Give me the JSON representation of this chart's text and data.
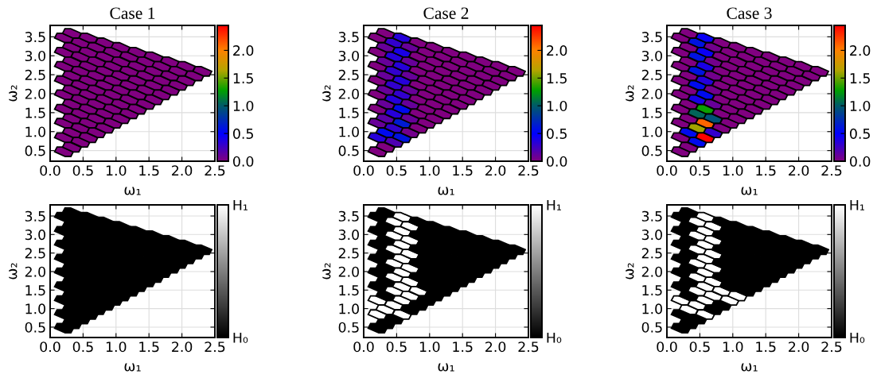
{
  "chart_data": [
    {
      "type": "scatter",
      "title": "Case 1",
      "xlabel": "ω₁",
      "ylabel": "ω₂",
      "grid": true,
      "xlim": [
        0,
        2.5
      ],
      "ylim": [
        0.22,
        3.8
      ],
      "xticks": [
        {
          "value": 0,
          "label": "0.0"
        },
        0.5,
        {
          "value": 1,
          "label": "1.0"
        },
        1.5,
        {
          "value": 2,
          "label": "2.0"
        },
        2.5
      ],
      "yticks": [
        0.5,
        {
          "value": 1,
          "label": "1.0"
        },
        1.5,
        {
          "value": 2,
          "label": "2.0"
        },
        2.5,
        {
          "value": 3,
          "label": "3.0"
        },
        3.5
      ],
      "clim": [
        0,
        2.45
      ],
      "cticks": [
        {
          "value": 0,
          "label": "0.0"
        },
        {
          "value": 0.5,
          "label": "0.5"
        },
        {
          "value": 1,
          "label": "1.0"
        },
        {
          "value": 1.5,
          "label": "1.5"
        },
        {
          "value": 2,
          "label": "2.0"
        }
      ],
      "x": [
        0.21,
        0.21,
        0.21,
        0.21,
        0.21,
        0.21,
        0.21,
        0.21,
        0.21,
        0.33,
        0.33,
        0.33,
        0.33,
        0.33,
        0.33,
        0.33,
        0.33,
        0.33,
        0.46,
        0.46,
        0.46,
        0.46,
        0.46,
        0.46,
        0.46,
        0.46,
        0.58,
        0.58,
        0.58,
        0.58,
        0.58,
        0.58,
        0.58,
        0.58,
        0.7,
        0.7,
        0.7,
        0.7,
        0.7,
        0.7,
        0.7,
        0.83,
        0.83,
        0.83,
        0.83,
        0.83,
        0.83,
        0.83,
        0.95,
        0.95,
        0.95,
        0.95,
        0.95,
        0.95,
        1.07,
        1.07,
        1.07,
        1.07,
        1.07,
        1.07,
        1.2,
        1.2,
        1.2,
        1.2,
        1.2,
        1.32,
        1.32,
        1.32,
        1.32,
        1.32,
        1.45,
        1.45,
        1.45,
        1.45,
        1.57,
        1.57,
        1.57,
        1.57,
        1.69,
        1.69,
        1.69,
        1.82,
        1.82,
        1.82,
        1.94,
        1.94,
        2.06,
        2.06,
        2.19,
        2.31
      ],
      "values": [
        0.47,
        0.84,
        1.22,
        1.59,
        1.97,
        2.34,
        2.72,
        3.09,
        3.47,
        0.59,
        0.97,
        1.34,
        1.72,
        2.09,
        2.47,
        2.84,
        3.22,
        3.59,
        0.72,
        1.09,
        1.47,
        1.84,
        2.22,
        2.59,
        2.97,
        3.34,
        0.84,
        1.22,
        1.59,
        1.97,
        2.34,
        2.72,
        3.09,
        3.47,
        0.97,
        1.34,
        1.72,
        2.09,
        2.47,
        2.84,
        3.22,
        1.09,
        1.47,
        1.84,
        2.22,
        2.59,
        2.97,
        3.34,
        1.22,
        1.59,
        1.97,
        2.34,
        2.72,
        3.09,
        1.34,
        1.72,
        2.09,
        2.47,
        2.84,
        3.22,
        1.47,
        1.84,
        2.22,
        2.59,
        2.97,
        1.59,
        1.97,
        2.34,
        2.72,
        3.09,
        1.72,
        2.09,
        2.47,
        2.84,
        1.84,
        2.22,
        2.59,
        2.97,
        1.97,
        2.34,
        2.72,
        2.09,
        2.47,
        2.84,
        2.22,
        2.59,
        2.34,
        2.72,
        2.47,
        2.59
      ],
      "cvalues": [
        0,
        0,
        0,
        0,
        0,
        0,
        0,
        0,
        0,
        0,
        0,
        0,
        0,
        0,
        0,
        0,
        0,
        0,
        0,
        0,
        0,
        0,
        0,
        0,
        0,
        0,
        0,
        0,
        0,
        0,
        0,
        0,
        0,
        0,
        0,
        0,
        0,
        0,
        0,
        0,
        0,
        0,
        0,
        0,
        0,
        0,
        0,
        0,
        0,
        0,
        0,
        0,
        0,
        0,
        0,
        0,
        0,
        0,
        0,
        0,
        0,
        0,
        0,
        0,
        0,
        0,
        0,
        0,
        0,
        0,
        0,
        0,
        0,
        0,
        0,
        0,
        0,
        0,
        0,
        0,
        0,
        0,
        0,
        0,
        0,
        0,
        0,
        0,
        0,
        0
      ]
    },
    {
      "type": "scatter",
      "title": "Case 2",
      "xlabel": "ω₁",
      "ylabel": "ω₂",
      "grid": true,
      "xlim": [
        0,
        2.5
      ],
      "ylim": [
        0.22,
        3.8
      ],
      "xticks": [
        {
          "value": 0,
          "label": "0.0"
        },
        0.5,
        {
          "value": 1,
          "label": "1.0"
        },
        1.5,
        {
          "value": 2,
          "label": "2.0"
        },
        2.5
      ],
      "yticks": [
        0.5,
        {
          "value": 1,
          "label": "1.0"
        },
        1.5,
        {
          "value": 2,
          "label": "2.0"
        },
        2.5,
        {
          "value": 3,
          "label": "3.0"
        },
        3.5
      ],
      "clim": [
        0,
        2.45
      ],
      "cticks": [
        {
          "value": 0,
          "label": "0.0"
        },
        {
          "value": 0.5,
          "label": "0.5"
        },
        {
          "value": 1,
          "label": "1.0"
        },
        {
          "value": 1.5,
          "label": "1.5"
        },
        {
          "value": 2,
          "label": "2.0"
        }
      ],
      "x": [
        0.21,
        0.21,
        0.21,
        0.21,
        0.21,
        0.21,
        0.21,
        0.21,
        0.21,
        0.33,
        0.33,
        0.33,
        0.33,
        0.33,
        0.33,
        0.33,
        0.33,
        0.33,
        0.46,
        0.46,
        0.46,
        0.46,
        0.46,
        0.46,
        0.46,
        0.46,
        0.58,
        0.58,
        0.58,
        0.58,
        0.58,
        0.58,
        0.58,
        0.58,
        0.7,
        0.7,
        0.7,
        0.7,
        0.7,
        0.7,
        0.7,
        0.83,
        0.83,
        0.83,
        0.83,
        0.83,
        0.83,
        0.83,
        0.95,
        0.95,
        0.95,
        0.95,
        0.95,
        0.95,
        1.07,
        1.07,
        1.07,
        1.07,
        1.07,
        1.07,
        1.2,
        1.2,
        1.2,
        1.2,
        1.2,
        1.32,
        1.32,
        1.32,
        1.32,
        1.32,
        1.45,
        1.45,
        1.45,
        1.45,
        1.57,
        1.57,
        1.57,
        1.57,
        1.69,
        1.69,
        1.69,
        1.82,
        1.82,
        1.82,
        1.94,
        1.94,
        2.06,
        2.06,
        2.19,
        2.31
      ],
      "values": [
        0.47,
        0.84,
        1.22,
        1.59,
        1.97,
        2.34,
        2.72,
        3.09,
        3.47,
        0.59,
        0.97,
        1.34,
        1.72,
        2.09,
        2.47,
        2.84,
        3.22,
        3.59,
        0.72,
        1.09,
        1.47,
        1.84,
        2.22,
        2.59,
        2.97,
        3.34,
        0.84,
        1.22,
        1.59,
        1.97,
        2.34,
        2.72,
        3.09,
        3.47,
        0.97,
        1.34,
        1.72,
        2.09,
        2.47,
        2.84,
        3.22,
        1.09,
        1.47,
        1.84,
        2.22,
        2.59,
        2.97,
        3.34,
        1.22,
        1.59,
        1.97,
        2.34,
        2.72,
        3.09,
        1.34,
        1.72,
        2.09,
        2.47,
        2.84,
        3.22,
        1.47,
        1.84,
        2.22,
        2.59,
        2.97,
        1.59,
        1.97,
        2.34,
        2.72,
        3.09,
        1.72,
        2.09,
        2.47,
        2.84,
        1.84,
        2.22,
        2.59,
        2.97,
        1.97,
        2.34,
        2.72,
        2.09,
        2.47,
        2.84,
        2.22,
        2.59,
        2.34,
        2.72,
        2.47,
        2.59
      ],
      "cvalues": [
        0,
        0.35,
        0.1,
        0,
        0,
        0,
        0,
        0,
        0,
        0,
        0.55,
        0.15,
        0.1,
        0.1,
        0.1,
        0.1,
        0.1,
        0,
        0.2,
        0.3,
        0.35,
        0.35,
        0.3,
        0.3,
        0.35,
        0.3,
        0.6,
        0.65,
        0.55,
        0.3,
        0.35,
        0.35,
        0.4,
        0.35,
        0.05,
        0.1,
        0.1,
        0.1,
        0.1,
        0.1,
        0.1,
        0,
        0,
        0,
        0,
        0,
        0,
        0,
        0,
        0,
        0,
        0,
        0,
        0,
        0,
        0,
        0,
        0,
        0,
        0,
        0,
        0,
        0,
        0,
        0,
        0,
        0,
        0,
        0,
        0,
        0,
        0,
        0,
        0,
        0,
        0,
        0,
        0,
        0,
        0,
        0,
        0,
        0,
        0,
        0,
        0,
        0,
        0,
        0,
        0
      ]
    },
    {
      "type": "scatter",
      "title": "Case 3",
      "xlabel": "ω₁",
      "ylabel": "ω₂",
      "grid": true,
      "xlim": [
        0,
        2.5
      ],
      "ylim": [
        0.22,
        3.8
      ],
      "xticks": [
        {
          "value": 0,
          "label": "0.0"
        },
        0.5,
        {
          "value": 1,
          "label": "1.0"
        },
        1.5,
        {
          "value": 2,
          "label": "2.0"
        },
        2.5
      ],
      "yticks": [
        0.5,
        {
          "value": 1,
          "label": "1.0"
        },
        1.5,
        {
          "value": 2,
          "label": "2.0"
        },
        2.5,
        {
          "value": 3,
          "label": "3.0"
        },
        3.5
      ],
      "clim": [
        0,
        2.45
      ],
      "cticks": [
        {
          "value": 0,
          "label": "0.0"
        },
        {
          "value": 0.5,
          "label": "0.5"
        },
        {
          "value": 1,
          "label": "1.0"
        },
        {
          "value": 1.5,
          "label": "1.5"
        },
        {
          "value": 2,
          "label": "2.0"
        }
      ],
      "x": [
        0.21,
        0.21,
        0.21,
        0.21,
        0.21,
        0.21,
        0.21,
        0.21,
        0.21,
        0.33,
        0.33,
        0.33,
        0.33,
        0.33,
        0.33,
        0.33,
        0.33,
        0.33,
        0.46,
        0.46,
        0.46,
        0.46,
        0.46,
        0.46,
        0.46,
        0.46,
        0.58,
        0.58,
        0.58,
        0.58,
        0.58,
        0.58,
        0.58,
        0.58,
        0.7,
        0.7,
        0.7,
        0.7,
        0.7,
        0.7,
        0.7,
        0.83,
        0.83,
        0.83,
        0.83,
        0.83,
        0.83,
        0.83,
        0.95,
        0.95,
        0.95,
        0.95,
        0.95,
        0.95,
        1.07,
        1.07,
        1.07,
        1.07,
        1.07,
        1.07,
        1.2,
        1.2,
        1.2,
        1.2,
        1.2,
        1.32,
        1.32,
        1.32,
        1.32,
        1.32,
        1.45,
        1.45,
        1.45,
        1.45,
        1.57,
        1.57,
        1.57,
        1.57,
        1.69,
        1.69,
        1.69,
        1.82,
        1.82,
        1.82,
        1.94,
        1.94,
        2.06,
        2.06,
        2.19,
        2.31
      ],
      "values": [
        0.47,
        0.84,
        1.22,
        1.59,
        1.97,
        2.34,
        2.72,
        3.09,
        3.47,
        0.59,
        0.97,
        1.34,
        1.72,
        2.09,
        2.47,
        2.84,
        3.22,
        3.59,
        0.72,
        1.09,
        1.47,
        1.84,
        2.22,
        2.59,
        2.97,
        3.34,
        0.84,
        1.22,
        1.59,
        1.97,
        2.34,
        2.72,
        3.09,
        3.47,
        0.97,
        1.34,
        1.72,
        2.09,
        2.47,
        2.84,
        3.22,
        1.09,
        1.47,
        1.84,
        2.22,
        2.59,
        2.97,
        3.34,
        1.22,
        1.59,
        1.97,
        2.34,
        2.72,
        3.09,
        1.34,
        1.72,
        2.09,
        2.47,
        2.84,
        3.22,
        1.47,
        1.84,
        2.22,
        2.59,
        2.97,
        1.59,
        1.97,
        2.34,
        2.72,
        3.09,
        1.72,
        2.09,
        2.47,
        2.84,
        1.84,
        2.22,
        2.59,
        2.97,
        1.97,
        2.34,
        2.72,
        2.09,
        2.47,
        2.84,
        2.22,
        2.59,
        2.34,
        2.72,
        2.47,
        2.59
      ],
      "cvalues": [
        0,
        0,
        0,
        0,
        0,
        0,
        0,
        0,
        0,
        0,
        0.55,
        0,
        0,
        0,
        0,
        0,
        0,
        0,
        0.55,
        1.6,
        1.05,
        0.4,
        0.55,
        0.6,
        0.6,
        0.6,
        2.45,
        2.1,
        1.3,
        0.55,
        0.35,
        0.4,
        0.45,
        0.45,
        0.3,
        0.95,
        0.1,
        0.05,
        0.05,
        0.05,
        0.05,
        0,
        0,
        0,
        0,
        0,
        0,
        0,
        0,
        0,
        0,
        0,
        0,
        0,
        0,
        0,
        0,
        0,
        0,
        0,
        0,
        0,
        0,
        0,
        0,
        0,
        0,
        0,
        0,
        0,
        0,
        0,
        0,
        0,
        0,
        0,
        0,
        0,
        0,
        0,
        0,
        0,
        0,
        0,
        0,
        0,
        0,
        0,
        0,
        0
      ]
    },
    {
      "type": "scatter",
      "xlabel": "ω₁",
      "ylabel": "ω₂",
      "grid": true,
      "xlim": [
        0,
        2.5
      ],
      "ylim": [
        0.22,
        3.8
      ],
      "xticks": [
        {
          "value": 0,
          "label": "0.0"
        },
        0.5,
        {
          "value": 1,
          "label": "1.0"
        },
        1.5,
        {
          "value": 2,
          "label": "2.0"
        },
        2.5
      ],
      "yticks": [
        0.5,
        {
          "value": 1,
          "label": "1.0"
        },
        1.5,
        {
          "value": 2,
          "label": "2.0"
        },
        2.5,
        {
          "value": 3,
          "label": "3.0"
        },
        3.5
      ],
      "clim": [
        0,
        1
      ],
      "cticks": [
        {
          "value": 0,
          "label": "H₀"
        },
        {
          "value": 1,
          "label": "H₁"
        }
      ],
      "x": [
        0.21,
        0.21,
        0.21,
        0.21,
        0.21,
        0.21,
        0.21,
        0.21,
        0.21,
        0.33,
        0.33,
        0.33,
        0.33,
        0.33,
        0.33,
        0.33,
        0.33,
        0.33,
        0.46,
        0.46,
        0.46,
        0.46,
        0.46,
        0.46,
        0.46,
        0.46,
        0.58,
        0.58,
        0.58,
        0.58,
        0.58,
        0.58,
        0.58,
        0.58,
        0.7,
        0.7,
        0.7,
        0.7,
        0.7,
        0.7,
        0.7,
        0.83,
        0.83,
        0.83,
        0.83,
        0.83,
        0.83,
        0.83,
        0.95,
        0.95,
        0.95,
        0.95,
        0.95,
        0.95,
        1.07,
        1.07,
        1.07,
        1.07,
        1.07,
        1.07,
        1.2,
        1.2,
        1.2,
        1.2,
        1.2,
        1.32,
        1.32,
        1.32,
        1.32,
        1.32,
        1.45,
        1.45,
        1.45,
        1.45,
        1.57,
        1.57,
        1.57,
        1.57,
        1.69,
        1.69,
        1.69,
        1.82,
        1.82,
        1.82,
        1.94,
        1.94,
        2.06,
        2.06,
        2.19,
        2.31
      ],
      "values": [
        0.47,
        0.84,
        1.22,
        1.59,
        1.97,
        2.34,
        2.72,
        3.09,
        3.47,
        0.59,
        0.97,
        1.34,
        1.72,
        2.09,
        2.47,
        2.84,
        3.22,
        3.59,
        0.72,
        1.09,
        1.47,
        1.84,
        2.22,
        2.59,
        2.97,
        3.34,
        0.84,
        1.22,
        1.59,
        1.97,
        2.34,
        2.72,
        3.09,
        3.47,
        0.97,
        1.34,
        1.72,
        2.09,
        2.47,
        2.84,
        3.22,
        1.09,
        1.47,
        1.84,
        2.22,
        2.59,
        2.97,
        3.34,
        1.22,
        1.59,
        1.97,
        2.34,
        2.72,
        3.09,
        1.34,
        1.72,
        2.09,
        2.47,
        2.84,
        3.22,
        1.47,
        1.84,
        2.22,
        2.59,
        2.97,
        1.59,
        1.97,
        2.34,
        2.72,
        3.09,
        1.72,
        2.09,
        2.47,
        2.84,
        1.84,
        2.22,
        2.59,
        2.97,
        1.97,
        2.34,
        2.72,
        2.09,
        2.47,
        2.84,
        2.22,
        2.59,
        2.34,
        2.72,
        2.47,
        2.59
      ],
      "cvalues": [
        0,
        0,
        0,
        0,
        0,
        0,
        0,
        0,
        0,
        0,
        0,
        0,
        0,
        0,
        0,
        0,
        0,
        0,
        0,
        0,
        0,
        0,
        0,
        0,
        0,
        0,
        0,
        0,
        0,
        0,
        0,
        0,
        0,
        0,
        0,
        0,
        0,
        0,
        0,
        0,
        0,
        0,
        0,
        0,
        0,
        0,
        0,
        0,
        0,
        0,
        0,
        0,
        0,
        0,
        0,
        0,
        0,
        0,
        0,
        0,
        0,
        0,
        0,
        0,
        0,
        0,
        0,
        0,
        0,
        0,
        0,
        0,
        0,
        0,
        0,
        0,
        0,
        0,
        0,
        0,
        0,
        0,
        0,
        0,
        0,
        0,
        0,
        0,
        0,
        0
      ]
    },
    {
      "type": "scatter",
      "xlabel": "ω₁",
      "ylabel": "ω₂",
      "grid": true,
      "xlim": [
        0,
        2.5
      ],
      "ylim": [
        0.22,
        3.8
      ],
      "xticks": [
        {
          "value": 0,
          "label": "0.0"
        },
        0.5,
        {
          "value": 1,
          "label": "1.0"
        },
        1.5,
        {
          "value": 2,
          "label": "2.0"
        },
        2.5
      ],
      "yticks": [
        0.5,
        {
          "value": 1,
          "label": "1.0"
        },
        1.5,
        {
          "value": 2,
          "label": "2.0"
        },
        2.5,
        {
          "value": 3,
          "label": "3.0"
        },
        3.5
      ],
      "clim": [
        0,
        1
      ],
      "cticks": [
        {
          "value": 0,
          "label": "H₀"
        },
        {
          "value": 1,
          "label": "H₁"
        }
      ],
      "x": [
        0.21,
        0.21,
        0.21,
        0.21,
        0.21,
        0.21,
        0.21,
        0.21,
        0.21,
        0.33,
        0.33,
        0.33,
        0.33,
        0.33,
        0.33,
        0.33,
        0.33,
        0.33,
        0.46,
        0.46,
        0.46,
        0.46,
        0.46,
        0.46,
        0.46,
        0.46,
        0.58,
        0.58,
        0.58,
        0.58,
        0.58,
        0.58,
        0.58,
        0.58,
        0.7,
        0.7,
        0.7,
        0.7,
        0.7,
        0.7,
        0.7,
        0.83,
        0.83,
        0.83,
        0.83,
        0.83,
        0.83,
        0.83,
        0.95,
        0.95,
        0.95,
        0.95,
        0.95,
        0.95,
        1.07,
        1.07,
        1.07,
        1.07,
        1.07,
        1.07,
        1.2,
        1.2,
        1.2,
        1.2,
        1.2,
        1.32,
        1.32,
        1.32,
        1.32,
        1.32,
        1.45,
        1.45,
        1.45,
        1.45,
        1.57,
        1.57,
        1.57,
        1.57,
        1.69,
        1.69,
        1.69,
        1.82,
        1.82,
        1.82,
        1.94,
        1.94,
        2.06,
        2.06,
        2.19,
        2.31
      ],
      "values": [
        0.47,
        0.84,
        1.22,
        1.59,
        1.97,
        2.34,
        2.72,
        3.09,
        3.47,
        0.59,
        0.97,
        1.34,
        1.72,
        2.09,
        2.47,
        2.84,
        3.22,
        3.59,
        0.72,
        1.09,
        1.47,
        1.84,
        2.22,
        2.59,
        2.97,
        3.34,
        0.84,
        1.22,
        1.59,
        1.97,
        2.34,
        2.72,
        3.09,
        3.47,
        0.97,
        1.34,
        1.72,
        2.09,
        2.47,
        2.84,
        3.22,
        1.09,
        1.47,
        1.84,
        2.22,
        2.59,
        2.97,
        3.34,
        1.22,
        1.59,
        1.97,
        2.34,
        2.72,
        3.09,
        1.34,
        1.72,
        2.09,
        2.47,
        2.84,
        3.22,
        1.47,
        1.84,
        2.22,
        2.59,
        2.97,
        1.59,
        1.97,
        2.34,
        2.72,
        3.09,
        1.72,
        2.09,
        2.47,
        2.84,
        1.84,
        2.22,
        2.59,
        2.97,
        1.97,
        2.34,
        2.72,
        2.09,
        2.47,
        2.84,
        2.22,
        2.59,
        2.34,
        2.72,
        2.47,
        2.59
      ],
      "cvalues": [
        0,
        1,
        1,
        0,
        0,
        0,
        0,
        0,
        0,
        0,
        1,
        0,
        0,
        0,
        0,
        0,
        0,
        0,
        0,
        1,
        1,
        1,
        1,
        1,
        1,
        1,
        1,
        1,
        1,
        1,
        1,
        1,
        1,
        1,
        0,
        1,
        1,
        1,
        1,
        1,
        1,
        0,
        1,
        0,
        0,
        0,
        0,
        0,
        0,
        0,
        0,
        0,
        0,
        0,
        0,
        0,
        0,
        0,
        0,
        0,
        0,
        0,
        0,
        0,
        0,
        0,
        0,
        0,
        0,
        0,
        0,
        0,
        0,
        0,
        0,
        0,
        0,
        0,
        0,
        0,
        0,
        0,
        0,
        0,
        0,
        0,
        0,
        0,
        0,
        0
      ]
    },
    {
      "type": "scatter",
      "xlabel": "ω₁",
      "ylabel": "ω₂",
      "grid": true,
      "xlim": [
        0,
        2.5
      ],
      "ylim": [
        0.22,
        3.8
      ],
      "xticks": [
        {
          "value": 0,
          "label": "0.0"
        },
        0.5,
        {
          "value": 1,
          "label": "1.0"
        },
        1.5,
        {
          "value": 2,
          "label": "2.0"
        },
        2.5
      ],
      "yticks": [
        0.5,
        {
          "value": 1,
          "label": "1.0"
        },
        1.5,
        {
          "value": 2,
          "label": "2.0"
        },
        2.5,
        {
          "value": 3,
          "label": "3.0"
        },
        3.5
      ],
      "clim": [
        0,
        1
      ],
      "cticks": [
        {
          "value": 0,
          "label": "H₀"
        },
        {
          "value": 1,
          "label": "H₁"
        }
      ],
      "x": [
        0.21,
        0.21,
        0.21,
        0.21,
        0.21,
        0.21,
        0.21,
        0.21,
        0.21,
        0.33,
        0.33,
        0.33,
        0.33,
        0.33,
        0.33,
        0.33,
        0.33,
        0.33,
        0.46,
        0.46,
        0.46,
        0.46,
        0.46,
        0.46,
        0.46,
        0.46,
        0.58,
        0.58,
        0.58,
        0.58,
        0.58,
        0.58,
        0.58,
        0.58,
        0.7,
        0.7,
        0.7,
        0.7,
        0.7,
        0.7,
        0.7,
        0.83,
        0.83,
        0.83,
        0.83,
        0.83,
        0.83,
        0.83,
        0.95,
        0.95,
        0.95,
        0.95,
        0.95,
        0.95,
        1.07,
        1.07,
        1.07,
        1.07,
        1.07,
        1.07,
        1.2,
        1.2,
        1.2,
        1.2,
        1.2,
        1.32,
        1.32,
        1.32,
        1.32,
        1.32,
        1.45,
        1.45,
        1.45,
        1.45,
        1.57,
        1.57,
        1.57,
        1.57,
        1.69,
        1.69,
        1.69,
        1.82,
        1.82,
        1.82,
        1.94,
        1.94,
        2.06,
        2.06,
        2.19,
        2.31
      ],
      "values": [
        0.47,
        0.84,
        1.22,
        1.59,
        1.97,
        2.34,
        2.72,
        3.09,
        3.47,
        0.59,
        0.97,
        1.34,
        1.72,
        2.09,
        2.47,
        2.84,
        3.22,
        3.59,
        0.72,
        1.09,
        1.47,
        1.84,
        2.22,
        2.59,
        2.97,
        3.34,
        0.84,
        1.22,
        1.59,
        1.97,
        2.34,
        2.72,
        3.09,
        3.47,
        0.97,
        1.34,
        1.72,
        2.09,
        2.47,
        2.84,
        3.22,
        1.09,
        1.47,
        1.84,
        2.22,
        2.59,
        2.97,
        3.34,
        1.22,
        1.59,
        1.97,
        2.34,
        2.72,
        3.09,
        1.34,
        1.72,
        2.09,
        2.47,
        2.84,
        3.22,
        1.47,
        1.84,
        2.22,
        2.59,
        2.97,
        1.59,
        1.97,
        2.34,
        2.72,
        3.09,
        1.72,
        2.09,
        2.47,
        2.84,
        1.84,
        2.22,
        2.59,
        2.97,
        1.97,
        2.34,
        2.72,
        2.09,
        2.47,
        2.84,
        2.22,
        2.59,
        2.34,
        2.72,
        2.47,
        2.59
      ],
      "cvalues": [
        0,
        0,
        1,
        0,
        0,
        0,
        0,
        0,
        0,
        0,
        1,
        0,
        0,
        0,
        0,
        0,
        0,
        0,
        0,
        1,
        1,
        1,
        1,
        1,
        1,
        1,
        1,
        1,
        1,
        1,
        1,
        1,
        1,
        1,
        0,
        1,
        1,
        1,
        1,
        1,
        1,
        0,
        1,
        0,
        0,
        0,
        0,
        0,
        1,
        0,
        0,
        0,
        0,
        0,
        1,
        0,
        0,
        0,
        0,
        0,
        0,
        0,
        0,
        0,
        0,
        0,
        0,
        0,
        0,
        0,
        0,
        0,
        0,
        0,
        0,
        0,
        0,
        0,
        0,
        0,
        0,
        0,
        0,
        0,
        0,
        0,
        0,
        0,
        0,
        0
      ]
    }
  ]
}
